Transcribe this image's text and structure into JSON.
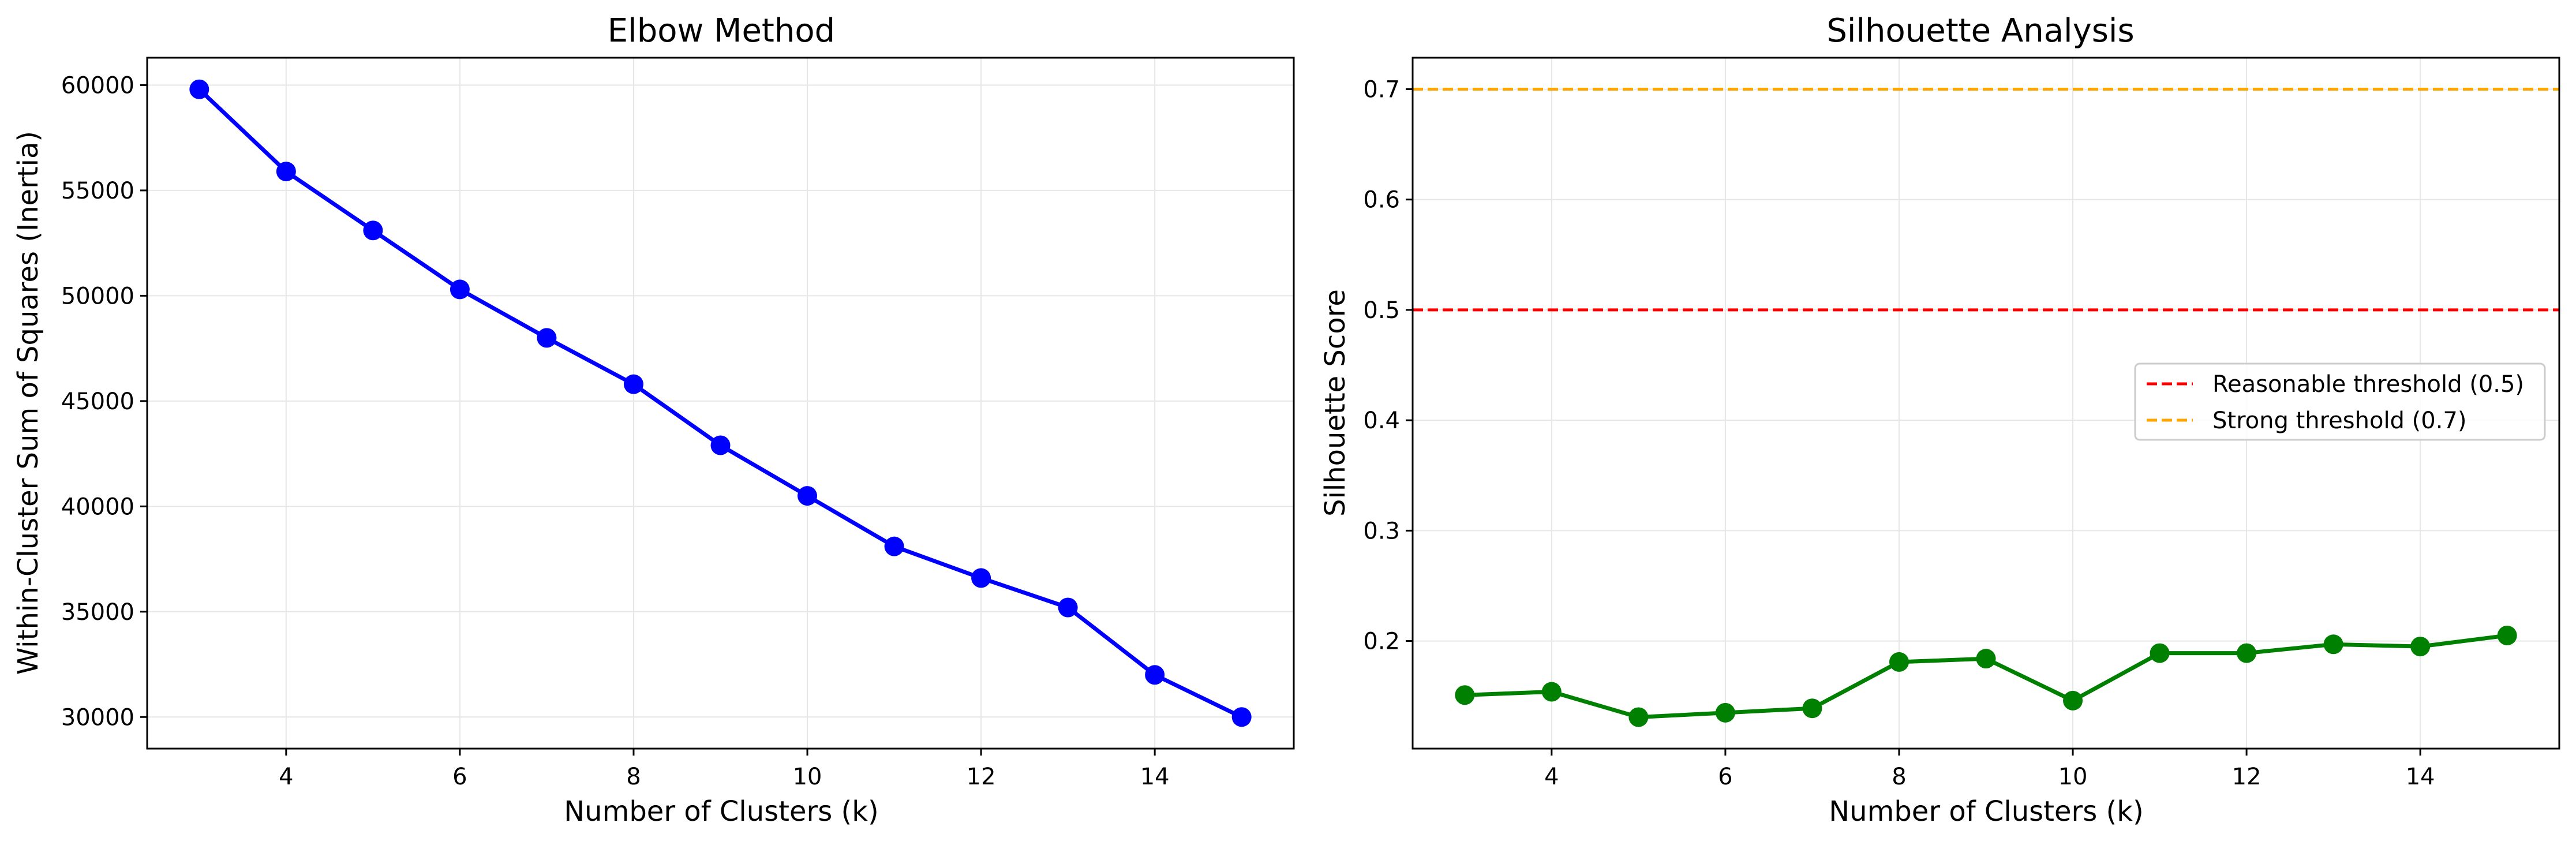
{
  "chart_data": [
    {
      "type": "line",
      "title": "Elbow Method",
      "xlabel": "Number of Clusters (k)",
      "ylabel": "Within-Cluster Sum of Squares (Inertia)",
      "xlim": [
        2.4,
        15.6
      ],
      "ylim": [
        28500,
        61300
      ],
      "xticks": [
        4,
        6,
        8,
        10,
        12,
        14
      ],
      "yticks": [
        30000,
        35000,
        40000,
        45000,
        50000,
        55000,
        60000
      ],
      "grid": true,
      "series": [
        {
          "color": "#0000ff",
          "x": [
            3,
            4,
            5,
            6,
            7,
            8,
            9,
            10,
            11,
            12,
            13,
            14,
            15
          ],
          "y": [
            59800,
            55900,
            53100,
            50300,
            48000,
            45800,
            42900,
            40500,
            38100,
            36600,
            35200,
            32000,
            30000
          ]
        }
      ]
    },
    {
      "type": "line",
      "title": "Silhouette Analysis",
      "xlabel": "Number of Clusters (k)",
      "ylabel": "Silhouette Score",
      "xlim": [
        2.4,
        15.6
      ],
      "ylim": [
        0.1025,
        0.7285
      ],
      "xticks": [
        4,
        6,
        8,
        10,
        12,
        14
      ],
      "yticks": [
        0.2,
        0.3,
        0.4,
        0.5,
        0.6,
        0.7
      ],
      "grid": true,
      "legend_position": "center-right",
      "series": [
        {
          "color": "#008000",
          "x": [
            3,
            4,
            5,
            6,
            7,
            8,
            9,
            10,
            11,
            12,
            13,
            14,
            15
          ],
          "y": [
            0.151,
            0.154,
            0.131,
            0.135,
            0.139,
            0.181,
            0.184,
            0.146,
            0.189,
            0.189,
            0.197,
            0.195,
            0.205
          ]
        }
      ],
      "reference_lines": [
        {
          "name": "Reasonable threshold (0.5)",
          "y": 0.5,
          "color": "#ff0000",
          "style": "dashed"
        },
        {
          "name": "Strong threshold (0.7)",
          "y": 0.7,
          "color": "#ffa500",
          "style": "dashed"
        }
      ]
    }
  ]
}
